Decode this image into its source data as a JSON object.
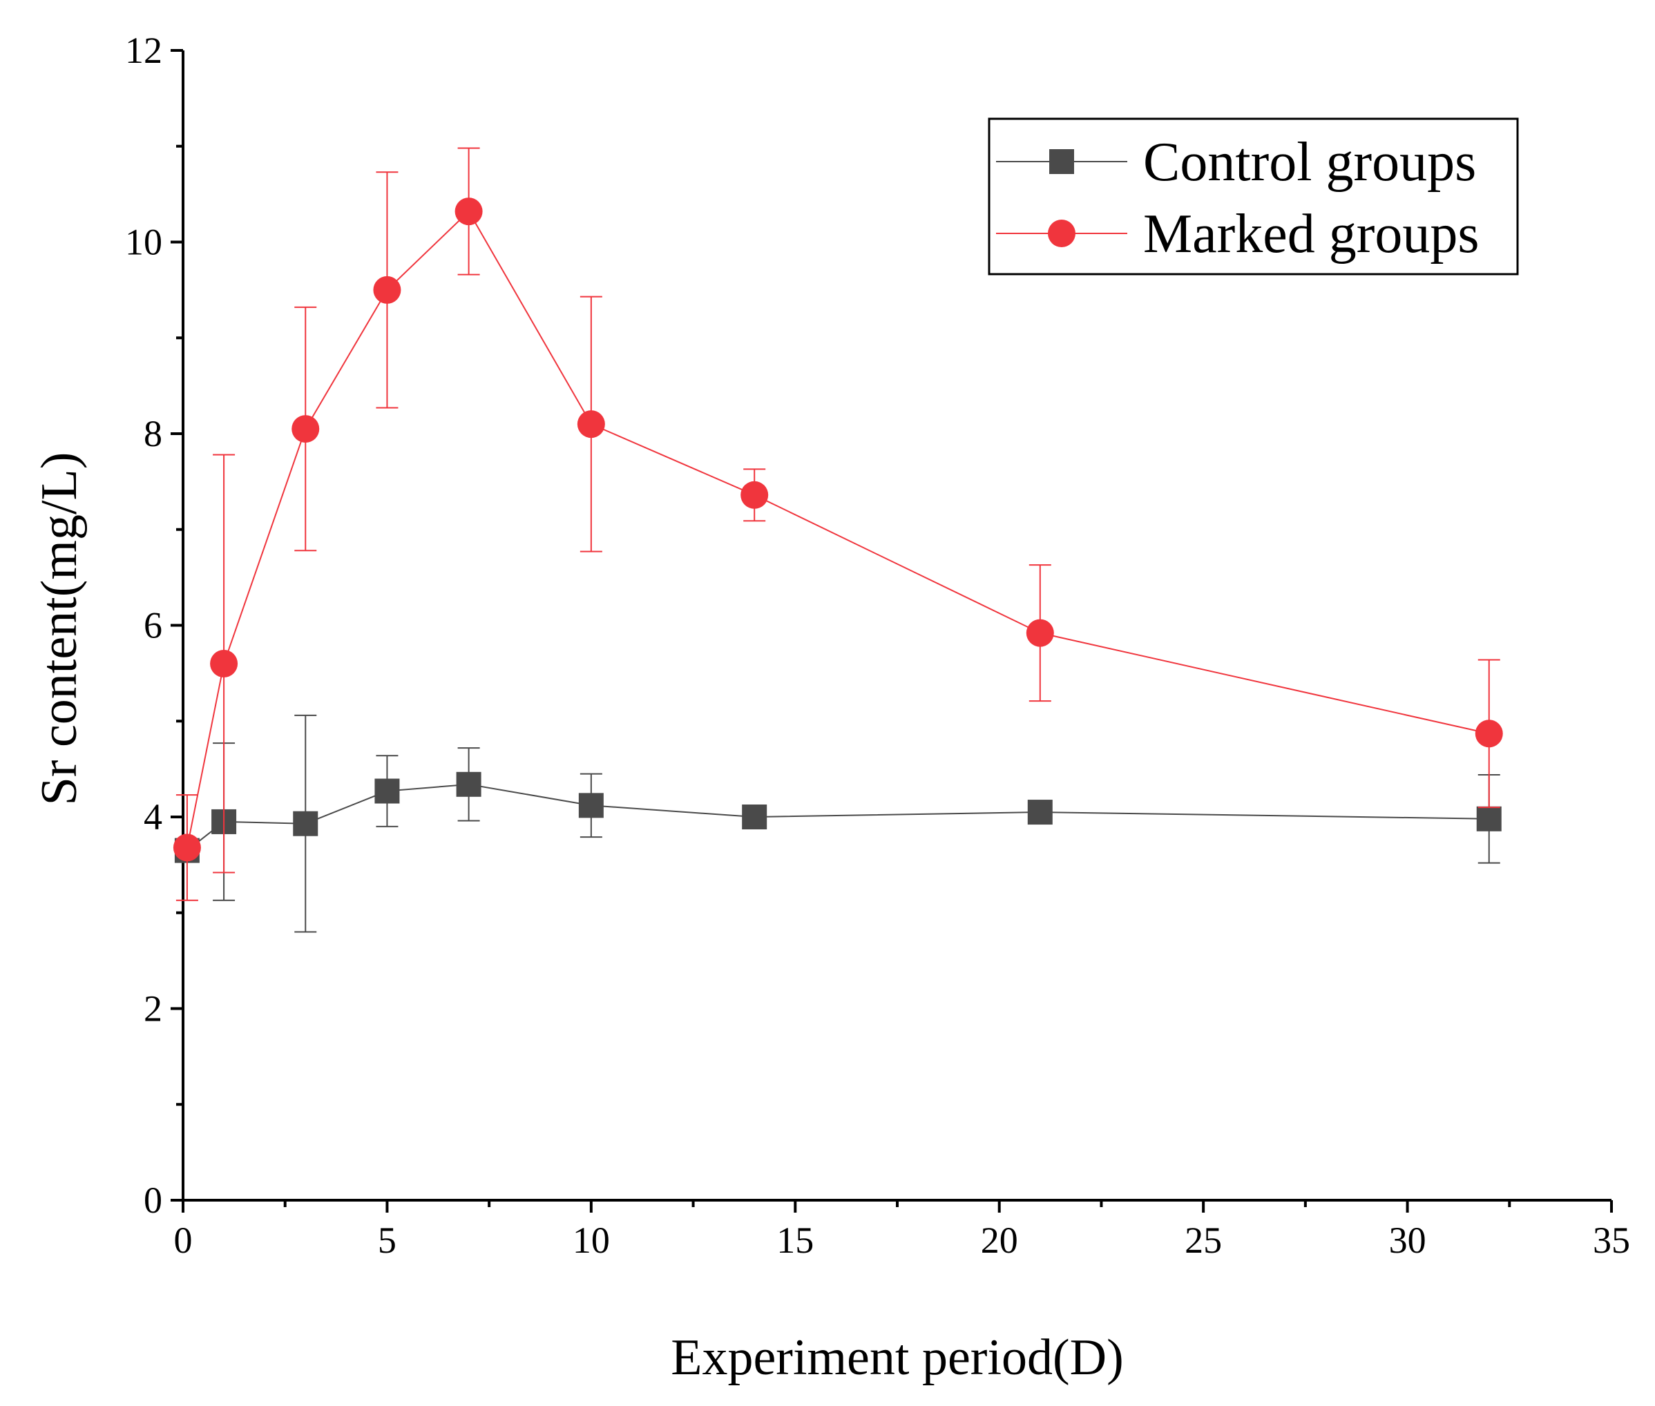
{
  "chart_data": {
    "type": "line",
    "title": "",
    "xlabel": "Experiment period(D)",
    "ylabel": "Sr content(mg/L)",
    "xlim": [
      0,
      35
    ],
    "ylim": [
      0,
      12
    ],
    "x_ticks": [
      0,
      5,
      10,
      15,
      20,
      25,
      30,
      35
    ],
    "y_ticks": [
      0,
      2,
      4,
      6,
      8,
      10,
      12
    ],
    "grid": false,
    "legend_position": "top-right",
    "series": [
      {
        "name": "Control groups",
        "color": "#4a4a4a",
        "marker": "square",
        "x": [
          0.1,
          1,
          3,
          5,
          7,
          10,
          14,
          21,
          32
        ],
        "y": [
          3.65,
          3.95,
          3.93,
          4.27,
          4.34,
          4.12,
          4.0,
          4.05,
          3.98
        ],
        "err": [
          0.0,
          0.82,
          1.13,
          0.37,
          0.38,
          0.33,
          0.0,
          0.0,
          0.46
        ]
      },
      {
        "name": "Marked groups",
        "color": "#f0353d",
        "marker": "circle",
        "x": [
          0.1,
          1,
          3,
          5,
          7,
          10,
          14,
          21,
          32
        ],
        "y": [
          3.68,
          5.6,
          8.05,
          9.5,
          10.32,
          8.1,
          7.36,
          5.92,
          4.87
        ],
        "err": [
          0.55,
          2.18,
          1.27,
          1.23,
          0.66,
          1.33,
          0.27,
          0.71,
          0.77
        ]
      }
    ]
  }
}
